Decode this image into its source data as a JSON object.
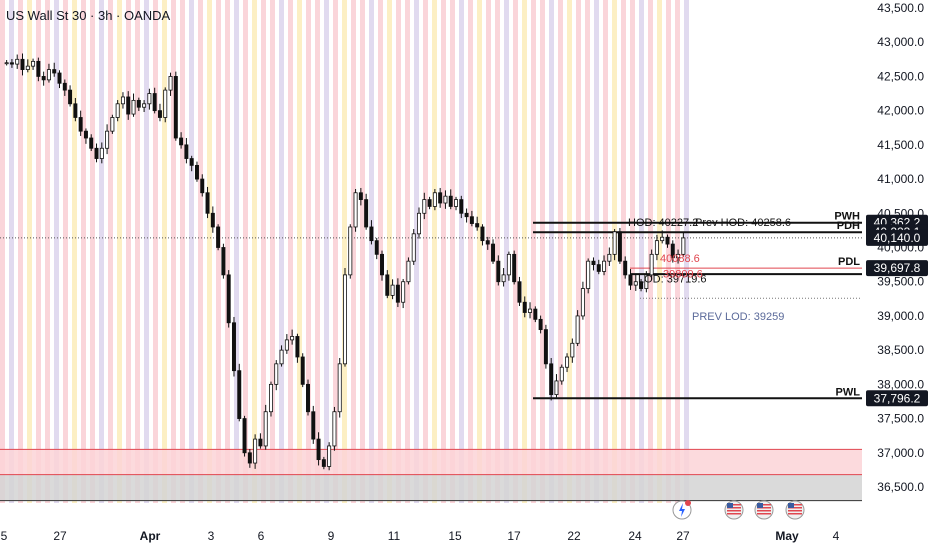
{
  "header": {
    "title": "US Wall St 30 · 3h · OANDA"
  },
  "colors": {
    "up": "#111111",
    "down": "#111111",
    "stripe_red": "#f8c7cd",
    "stripe_purple": "#d7cdea",
    "stripe_yellow": "#fbe9b0",
    "zone_red": "#fbd4d7",
    "zone_gray": "#d4d4d4",
    "axis_text": "#131722",
    "price_tag_bg": "#131722",
    "pdl_red": "#e0464f",
    "annotation_blue": "#5b6a9a"
  },
  "chart_data": {
    "type": "candlestick",
    "title": "US Wall St 30 · 3h · OANDA",
    "ylim": [
      36300,
      43500
    ],
    "y_ticks": [
      "43,500.0",
      "43,000.0",
      "42,500.0",
      "42,000.0",
      "41,500.0",
      "41,000.0",
      "40,500.0",
      "40,000.0",
      "39,500.0",
      "39,000.0",
      "38,500.0",
      "38,000.0",
      "37,500.0",
      "37,000.0",
      "36,500.0"
    ],
    "y_tick_values": [
      43500,
      43000,
      42500,
      42000,
      41500,
      41000,
      40500,
      40000,
      39500,
      39000,
      38500,
      38000,
      37500,
      37000,
      36500
    ],
    "x_tick_labels": [
      "5",
      "27",
      "Apr",
      "3",
      "6",
      "9",
      "11",
      "15",
      "17",
      "22",
      "24",
      "27",
      "May",
      "4"
    ],
    "close_series": [
      42700,
      42680,
      42750,
      42600,
      42650,
      42720,
      42500,
      42450,
      42600,
      42550,
      42400,
      42300,
      42100,
      41900,
      41700,
      41600,
      41450,
      41300,
      41450,
      41700,
      41900,
      42100,
      42200,
      41950,
      42150,
      42050,
      42100,
      42250,
      42000,
      41900,
      42300,
      42500,
      41600,
      41500,
      41300,
      41200,
      41000,
      40800,
      40500,
      40300,
      40000,
      39600,
      38900,
      38200,
      37500,
      37000,
      36850,
      37200,
      37100,
      37600,
      38000,
      38300,
      38500,
      38650,
      38700,
      38400,
      38000,
      37600,
      37200,
      36900,
      36800,
      37100,
      37600,
      38300,
      39600,
      40300,
      40800,
      40700,
      40300,
      40100,
      39900,
      39600,
      39300,
      39450,
      39200,
      39500,
      39800,
      40200,
      40500,
      40700,
      40600,
      40800,
      40650,
      40750,
      40600,
      40700,
      40500,
      40450,
      40350,
      40300,
      40100,
      40050,
      39800,
      39500,
      39600,
      39900,
      39500,
      39200,
      39050,
      39100,
      38950,
      38800,
      38300,
      37850,
      38050,
      38250,
      38400,
      38600,
      39000,
      39400,
      39800,
      39750,
      39650,
      39800,
      39900,
      40230,
      39800,
      39600,
      39450,
      39500,
      39400,
      39600,
      39900,
      40100,
      40150,
      40050,
      39850,
      39900,
      40140
    ],
    "levels": [
      {
        "label": "PWH",
        "price": 40362.2,
        "tag": "40,362.2"
      },
      {
        "label": "PDH",
        "price": 40223.1,
        "tag": "40,223.1"
      },
      {
        "label": "",
        "price": 40140.0,
        "tag": "40,140.0"
      },
      {
        "label": "PDL",
        "price": 39697.8,
        "tag": "39,697.8"
      },
      {
        "label": "PWL",
        "price": 37796.2,
        "tag": "37,796.2"
      }
    ],
    "annotations": [
      {
        "text": "HOD: 40227.2",
        "price": 40370
      },
      {
        "text": "Prev HOD: 40258.6",
        "price": 40370
      },
      {
        "text": "LOD: 39719.6",
        "price": 39550
      },
      {
        "text": "PREV LOD: 39259",
        "price": 39000
      },
      {
        "text": "39809.6",
        "price": 39620
      },
      {
        "text": "40088.6",
        "price": 39850
      }
    ],
    "zones": [
      {
        "from": 36680,
        "to": 37050,
        "color": "zone_red"
      },
      {
        "from": 36300,
        "to": 36680,
        "color": "zone_gray"
      }
    ]
  }
}
